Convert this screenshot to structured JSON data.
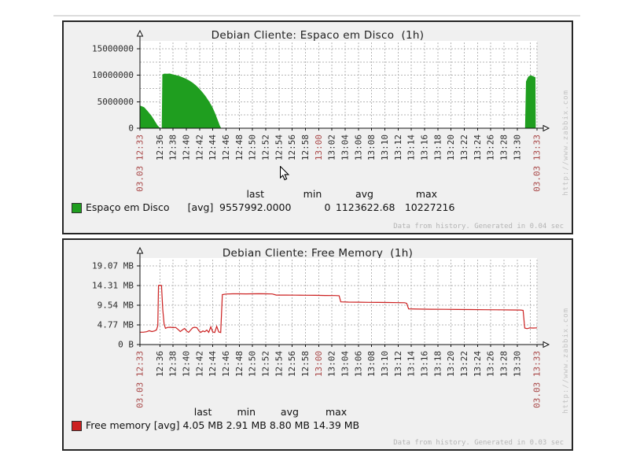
{
  "watermark": "http://www.zabbix.com",
  "colors": {
    "page_bg": "#ffffff",
    "panel_bg": "#f0f0f0",
    "panel_border": "#262626",
    "grid": "#b6b6b6",
    "axis": "#111111",
    "tick_label": "#2b2b2b",
    "red_label": "#a84646",
    "disk_green": "#1f9e1f",
    "memory_red": "#cc2020"
  },
  "time_axis": {
    "ticks": [
      {
        "m": 0,
        "label": "03.03 12:33",
        "red": true
      },
      {
        "m": 3,
        "label": "12:36"
      },
      {
        "m": 5,
        "label": "12:38"
      },
      {
        "m": 7,
        "label": "12:40"
      },
      {
        "m": 9,
        "label": "12:42"
      },
      {
        "m": 11,
        "label": "12:44"
      },
      {
        "m": 13,
        "label": "12:46"
      },
      {
        "m": 15,
        "label": "12:48"
      },
      {
        "m": 17,
        "label": "12:50"
      },
      {
        "m": 19,
        "label": "12:52"
      },
      {
        "m": 21,
        "label": "12:54"
      },
      {
        "m": 23,
        "label": "12:56"
      },
      {
        "m": 25,
        "label": "12:58"
      },
      {
        "m": 27,
        "label": "13:00",
        "red": true
      },
      {
        "m": 29,
        "label": "13:02"
      },
      {
        "m": 31,
        "label": "13:04"
      },
      {
        "m": 33,
        "label": "13:06"
      },
      {
        "m": 35,
        "label": "13:08"
      },
      {
        "m": 37,
        "label": "13:10"
      },
      {
        "m": 39,
        "label": "13:12"
      },
      {
        "m": 41,
        "label": "13:14"
      },
      {
        "m": 43,
        "label": "13:16"
      },
      {
        "m": 45,
        "label": "13:18"
      },
      {
        "m": 47,
        "label": "13:20"
      },
      {
        "m": 49,
        "label": "13:22"
      },
      {
        "m": 51,
        "label": "13:24"
      },
      {
        "m": 53,
        "label": "13:26"
      },
      {
        "m": 55,
        "label": "13:28"
      },
      {
        "m": 57,
        "label": "13:30"
      },
      {
        "m": 60,
        "label": "03.03 13:33",
        "red": true
      }
    ]
  },
  "chart_data": [
    {
      "type": "area",
      "title": "Debian Cliente: Espaco em Disco  (1h)",
      "xlabel": "",
      "ylabel": "",
      "x_range": [
        "03.03 12:33",
        "03.03 13:33"
      ],
      "ylim": [
        0,
        15000000
      ],
      "y_axis": {
        "ticks": [
          {
            "v": 15000000,
            "label": "15000000"
          },
          {
            "v": 10000000,
            "label": "10000000"
          },
          {
            "v": 5000000,
            "label": "5000000"
          },
          {
            "v": 0,
            "label": "0"
          }
        ],
        "gridlines": [
          2500000,
          5000000,
          7500000,
          10000000,
          12500000,
          15000000
        ]
      },
      "series": [
        {
          "name": "Espaço em Disco",
          "color": "#1f9e1f",
          "points": [
            [
              0,
              4200000
            ],
            [
              0.6,
              3900000
            ],
            [
              1.1,
              3200000
            ],
            [
              1.7,
              2300000
            ],
            [
              2.2,
              1300000
            ],
            [
              2.6,
              500000
            ],
            [
              2.9,
              100000
            ],
            [
              3.1,
              0
            ],
            [
              3.35,
              0
            ],
            [
              3.45,
              10100000
            ],
            [
              3.7,
              10227216
            ],
            [
              4.1,
              10200000
            ],
            [
              4.5,
              10250000
            ],
            [
              4.9,
              10100000
            ],
            [
              5.4,
              9950000
            ],
            [
              5.9,
              9800000
            ],
            [
              6.4,
              9550000
            ],
            [
              6.9,
              9300000
            ],
            [
              7.4,
              8950000
            ],
            [
              7.9,
              8550000
            ],
            [
              8.4,
              8050000
            ],
            [
              8.9,
              7450000
            ],
            [
              9.4,
              6750000
            ],
            [
              9.9,
              5950000
            ],
            [
              10.4,
              5000000
            ],
            [
              10.9,
              3950000
            ],
            [
              11.3,
              2800000
            ],
            [
              11.7,
              1500000
            ],
            [
              12.0,
              500000
            ],
            [
              12.2,
              0
            ],
            [
              58.25,
              0
            ],
            [
              58.4,
              8800000
            ],
            [
              58.7,
              9650000
            ],
            [
              59.0,
              9900000
            ],
            [
              59.3,
              9800000
            ],
            [
              59.55,
              9650000
            ],
            [
              59.7,
              9557992
            ],
            [
              59.75,
              0
            ]
          ]
        }
      ],
      "legend": {
        "name": "Espaço em Disco",
        "func": "[avg]",
        "headers": [
          "last",
          "min",
          "avg",
          "max"
        ],
        "values": [
          "9557992.0000",
          "0",
          "1123622.68",
          "10227216"
        ]
      },
      "footer": "Data from history. Generated in 0.04 sec"
    },
    {
      "type": "line",
      "title": "Debian Cliente: Free Memory  (1h)",
      "xlabel": "",
      "ylabel": "",
      "x_range": [
        "03.03 12:33",
        "03.03 13:33"
      ],
      "ylim": [
        0,
        19.07
      ],
      "unit": "MB",
      "y_axis": {
        "ticks": [
          {
            "v": 19.07,
            "label": "19.07 MB"
          },
          {
            "v": 14.31,
            "label": "14.31 MB"
          },
          {
            "v": 9.54,
            "label": "9.54 MB"
          },
          {
            "v": 4.77,
            "label": "4.77 MB"
          },
          {
            "v": 0,
            "label": "0 B"
          }
        ],
        "gridlines": [
          4.77,
          9.54,
          14.31,
          19.07
        ]
      },
      "series": [
        {
          "name": "Free memory",
          "color": "#cc2020",
          "points": [
            [
              0,
              3.0
            ],
            [
              0.5,
              3.0
            ],
            [
              1.0,
              3.1
            ],
            [
              1.4,
              3.35
            ],
            [
              1.8,
              3.15
            ],
            [
              2.2,
              3.3
            ],
            [
              2.5,
              3.55
            ],
            [
              2.7,
              4.6
            ],
            [
              2.8,
              14.31
            ],
            [
              3.0,
              14.39
            ],
            [
              3.25,
              14.31
            ],
            [
              3.45,
              8.5
            ],
            [
              3.65,
              5.0
            ],
            [
              3.85,
              3.95
            ],
            [
              4.2,
              4.15
            ],
            [
              4.6,
              4.2
            ],
            [
              5.0,
              4.1
            ],
            [
              5.4,
              4.15
            ],
            [
              5.8,
              3.6
            ],
            [
              6.1,
              3.15
            ],
            [
              6.45,
              3.6
            ],
            [
              6.75,
              3.9
            ],
            [
              7.05,
              3.3
            ],
            [
              7.35,
              2.95
            ],
            [
              7.65,
              3.5
            ],
            [
              7.95,
              4.05
            ],
            [
              8.25,
              4.2
            ],
            [
              8.6,
              4.1
            ],
            [
              8.9,
              3.35
            ],
            [
              9.2,
              2.95
            ],
            [
              9.5,
              3.3
            ],
            [
              9.8,
              3.1
            ],
            [
              10.1,
              3.5
            ],
            [
              10.4,
              2.95
            ],
            [
              10.7,
              4.3
            ],
            [
              11.0,
              3.05
            ],
            [
              11.3,
              2.91
            ],
            [
              11.6,
              4.4
            ],
            [
              11.9,
              3.05
            ],
            [
              12.2,
              2.91
            ],
            [
              12.45,
              12.1
            ],
            [
              13,
              12.25
            ],
            [
              14,
              12.3
            ],
            [
              15,
              12.3
            ],
            [
              16,
              12.28
            ],
            [
              17,
              12.3
            ],
            [
              18,
              12.32
            ],
            [
              19,
              12.3
            ],
            [
              20,
              12.26
            ],
            [
              20.6,
              12.0
            ],
            [
              22,
              12.0
            ],
            [
              23.5,
              11.98
            ],
            [
              25,
              11.96
            ],
            [
              26.5,
              11.93
            ],
            [
              28,
              11.9
            ],
            [
              29.5,
              11.88
            ],
            [
              30.1,
              11.85
            ],
            [
              30.35,
              10.35
            ],
            [
              31.5,
              10.3
            ],
            [
              33,
              10.27
            ],
            [
              34.5,
              10.25
            ],
            [
              36,
              10.22
            ],
            [
              37.5,
              10.2
            ],
            [
              39,
              10.17
            ],
            [
              40,
              10.15
            ],
            [
              40.3,
              10.0
            ],
            [
              40.6,
              8.65
            ],
            [
              42,
              8.6
            ],
            [
              44,
              8.57
            ],
            [
              46,
              8.54
            ],
            [
              48,
              8.51
            ],
            [
              50,
              8.48
            ],
            [
              52,
              8.45
            ],
            [
              54,
              8.43
            ],
            [
              56,
              8.4
            ],
            [
              57.5,
              8.37
            ],
            [
              57.9,
              8.3
            ],
            [
              58.15,
              4.0
            ],
            [
              58.5,
              3.85
            ],
            [
              58.9,
              4.05
            ],
            [
              59.4,
              4.0
            ],
            [
              60,
              4.05
            ]
          ]
        }
      ],
      "legend": {
        "name": "Free memory",
        "func": "[avg]",
        "headers": [
          "last",
          "min",
          "avg",
          "max"
        ],
        "values": [
          "4.05 MB",
          "2.91 MB",
          "8.80 MB",
          "14.39 MB"
        ]
      },
      "footer": "Data from history. Generated in 0.03 sec"
    }
  ]
}
